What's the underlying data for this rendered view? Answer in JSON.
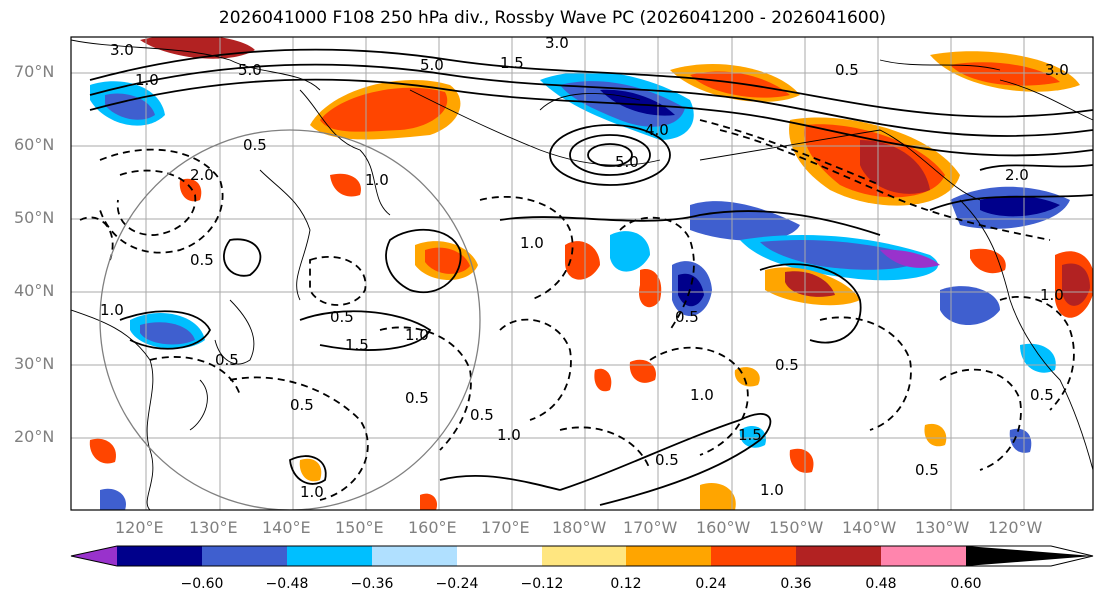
{
  "title": "2026041000 F108 250 hPa div., Rossby Wave PC (2026041200 - 2026041600)",
  "lat_labels": [
    "70°N",
    "60°N",
    "50°N",
    "40°N",
    "30°N",
    "20°N"
  ],
  "lon_labels": [
    "120°E",
    "130°E",
    "140°E",
    "150°E",
    "160°E",
    "170°E",
    "180°W",
    "170°W",
    "160°W",
    "150°W",
    "140°W",
    "130°W",
    "120°W"
  ],
  "colorbar": {
    "ticks": [
      "−0.60",
      "−0.48",
      "−0.36",
      "−0.24",
      "−0.12",
      "0.12",
      "0.24",
      "0.36",
      "0.48",
      "0.60"
    ],
    "colors": [
      "#9932cc",
      "#00008b",
      "#3f5fcf",
      "#00bfff",
      "#b0e0ff",
      "#ffffff",
      "#ffe680",
      "#ffa500",
      "#ff4500",
      "#b22222",
      "#ff85ad"
    ]
  },
  "contour_labels": [
    "3.0",
    "5.0",
    "3.0",
    "1.0",
    "5.0",
    "1.5",
    "4.0",
    "5.0",
    "0.5",
    "0.5",
    "1.0",
    "2.0",
    "1.0",
    "0.5",
    "1.0",
    "0.5",
    "1.5",
    "0.5",
    "1.0",
    "0.5",
    "0.5",
    "1.0",
    "1.5",
    "0.5",
    "0.5",
    "1.0",
    "0.5",
    "1.0",
    "0.5",
    "3.0",
    "2.0",
    "1.0",
    "0.5",
    "0.5",
    "1.0"
  ]
}
